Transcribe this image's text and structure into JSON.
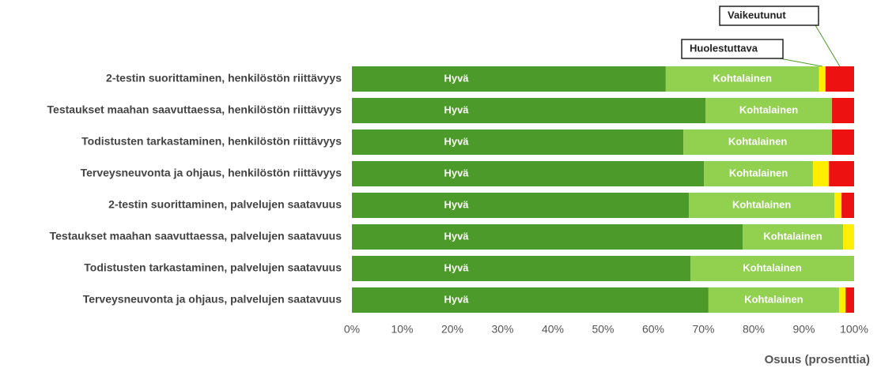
{
  "chart_data": {
    "type": "stacked_barh",
    "categories": [
      "2-testin suorittaminen, henkilöstön riittävyys",
      "Testaukset maahan saavuttaessa, henkilöstön riittävyys",
      "Todistusten tarkastaminen, henkilöstön riittävyys",
      "Terveysneuvonta ja ohjaus, henkilöstön riittävyys",
      "2-testin suorittaminen, palvelujen saatavuus",
      "Testaukset maahan saavuttaessa, palvelujen saatavuus",
      "Todistusten tarkastaminen, palvelujen saatavuus",
      "Terveysneuvonta ja ohjaus, palvelujen saatavuus"
    ],
    "series": [
      {
        "name": "Hyvä",
        "color": "#4c9a2a",
        "values": [
          62.5,
          70.4,
          66,
          70.1,
          67.1,
          77.8,
          67.4,
          71
        ]
      },
      {
        "name": "Kohtalainen",
        "color": "#92d050",
        "values": [
          30.5,
          25.2,
          29.6,
          21.7,
          29,
          20,
          32.6,
          26
        ]
      },
      {
        "name": "Huolestuttava",
        "color": "#ffee00",
        "values": [
          1.3,
          0,
          0,
          3.2,
          1.4,
          2.2,
          0,
          1.3
        ]
      },
      {
        "name": "Vaikeutunut",
        "color": "#ee1111",
        "values": [
          5.7,
          4.4,
          4.4,
          5,
          2.5,
          0,
          0,
          1.7
        ]
      }
    ],
    "xlabel": "Osuus (prosenttia)",
    "xlim": [
      0,
      100
    ],
    "xticks": [
      {
        "value": 0,
        "label": "0%"
      },
      {
        "value": 10,
        "label": "10%"
      },
      {
        "value": 20,
        "label": "20%"
      },
      {
        "value": 30,
        "label": "30%"
      },
      {
        "value": 40,
        "label": "40%"
      },
      {
        "value": 50,
        "label": "50%"
      },
      {
        "value": 60,
        "label": "60%"
      },
      {
        "value": 70,
        "label": "70%"
      },
      {
        "value": 80,
        "label": "80%"
      },
      {
        "value": 90,
        "label": "90%"
      },
      {
        "value": 100,
        "label": "100%"
      }
    ]
  }
}
